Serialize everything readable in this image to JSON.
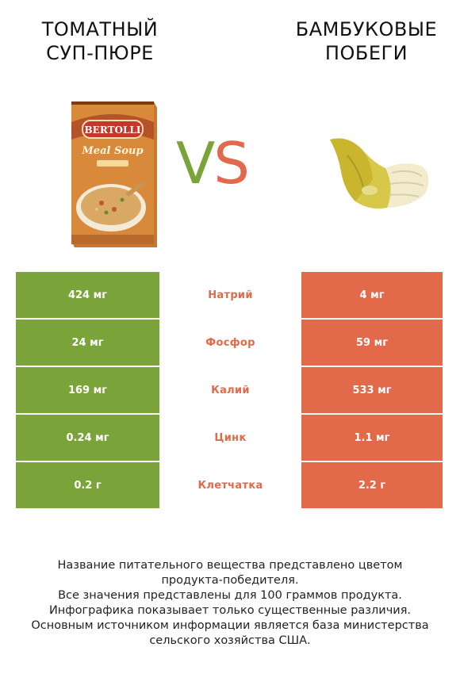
{
  "header": {
    "left_title_line1": "ТОМАТНЫЙ",
    "left_title_line2": "СУП-ПЮРЕ",
    "right_title_line1": "БАМБУКОВЫЕ",
    "right_title_line2": "ПОБЕГИ",
    "vs_v": "V",
    "vs_s": "S"
  },
  "left_product": {
    "brand": "BERTOLLI",
    "package_text": "Meal Soup"
  },
  "comparison": {
    "rows": [
      {
        "left": "424 мг",
        "nutrient": "Натрий",
        "right": "4 мг"
      },
      {
        "left": "24 мг",
        "nutrient": "Фосфор",
        "right": "59 мг"
      },
      {
        "left": "169 мг",
        "nutrient": "Калий",
        "right": "533 мг"
      },
      {
        "left": "0.24 мг",
        "nutrient": "Цинк",
        "right": "1.1 мг"
      },
      {
        "left": "0.2 г",
        "nutrient": "Клетчатка",
        "right": "2.2 г"
      }
    ]
  },
  "colors": {
    "left_accent": "#7aa33a",
    "right_accent": "#e2694a"
  },
  "footer": {
    "line1": "Название питательного вещества представлено цветом",
    "line2": "продукта-победителя.",
    "line3": "Все значения представлены для 100 граммов продукта.",
    "line4": "Инфографика показывает только существенные различия.",
    "line5": "Основным источником информации является база министерства",
    "line6": "сельского хозяйства США."
  }
}
